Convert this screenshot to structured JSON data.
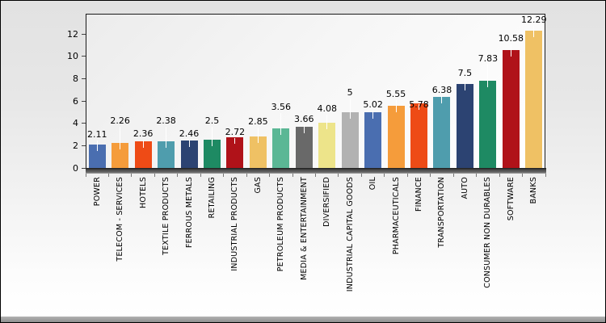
{
  "chart_data": {
    "type": "bar",
    "title": "",
    "xlabel": "",
    "ylabel": "",
    "legend": "none",
    "grid": "off",
    "ylim": [
      0,
      13.83
    ],
    "yticks": [
      0,
      2,
      4,
      6,
      8,
      10,
      12
    ],
    "categories": [
      "POWER",
      "TELECOM - SERVICES",
      "HOTELS",
      "TEXTILE PRODUCTS",
      "FERROUS METALS",
      "RETAILING",
      "INDUSTRIAL PRODUCTS",
      "GAS",
      "PETROLEUM PRODUCTS",
      "MEDIA & ENTERTAINMENT",
      "DIVERSIFIED",
      "INDUSTRIAL CAPITAL GOODS",
      "OIL",
      "PHARMACEUTICALS",
      "FINANCE",
      "TRANSPORTATION",
      "AUTO",
      "CONSUMER NON DURABLES",
      "SOFTWARE",
      "BANKS"
    ],
    "values": [
      2.11,
      2.26,
      2.36,
      2.38,
      2.46,
      2.5,
      2.72,
      2.85,
      3.56,
      3.66,
      4.08,
      5,
      5.02,
      5.55,
      5.78,
      6.38,
      7.5,
      7.83,
      10.58,
      12.29
    ],
    "value_labels": [
      "2.11",
      "2.26",
      "2.36",
      "2.38",
      "2.46",
      "2.5",
      "2.72",
      "2.85",
      "3.56",
      "3.66",
      "4.08",
      "5",
      "5.02",
      "5.55",
      "5.78",
      "6.38",
      "7.5",
      "7.83",
      "10.58",
      "12.29"
    ],
    "bar_colors": [
      "#4A6EB0",
      "#F59C3B",
      "#EE4B16",
      "#4F9DAD",
      "#2C4372",
      "#1E8A63",
      "#B01219",
      "#EFC164",
      "#5BB795",
      "#696969",
      "#EDE48A",
      "#B2B2B2",
      "#4A6EB0",
      "#F59C3B",
      "#EE4B16",
      "#4F9DAD",
      "#2C4372",
      "#1E8A63",
      "#B01219",
      "#EFC164"
    ],
    "colors": {
      "plot_border": "#1a1a1a",
      "axis_band": "#4f4f4f",
      "value_label_text": "#000000",
      "category_label_text": "#000000",
      "leader_line": "#ffffff",
      "background_top": "#e2e2e2",
      "background_bottom": "#ffffff"
    }
  }
}
